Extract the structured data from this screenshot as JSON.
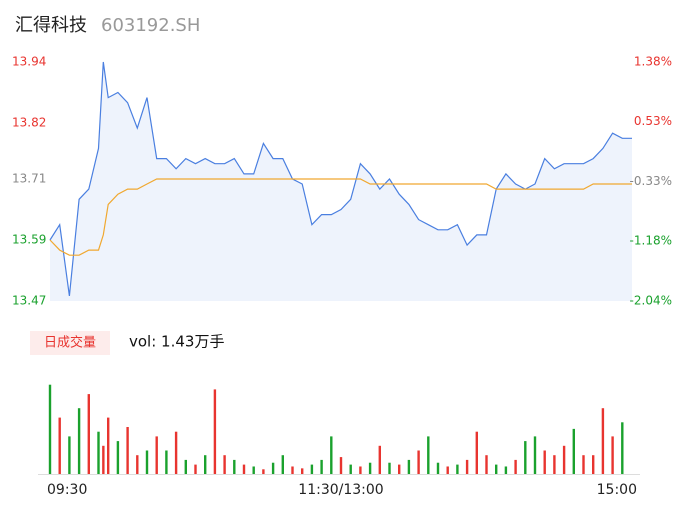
{
  "chart_data": [
    {
      "type": "line",
      "title": "汇得科技",
      "subtitle": "603192.SH",
      "x": [
        0,
        4,
        8,
        12,
        16,
        20,
        22,
        24,
        28,
        32,
        36,
        40,
        44,
        48,
        52,
        56,
        60,
        64,
        68,
        72,
        76,
        80,
        84,
        88,
        92,
        96,
        100,
        104,
        108,
        112,
        116,
        120,
        124,
        128,
        132,
        136,
        140,
        144,
        148,
        152,
        156,
        160,
        164,
        168,
        172,
        176,
        180,
        184,
        188,
        192,
        196,
        200,
        204,
        208,
        212,
        216,
        220,
        224,
        228,
        232,
        236,
        240
      ],
      "xlim": [
        0,
        240
      ],
      "xticks": [
        {
          "value": 0,
          "label": "09:30"
        },
        {
          "value": 120,
          "label": "11:30/13:00"
        },
        {
          "value": 240,
          "label": "15:00"
        }
      ],
      "series": [
        {
          "name": "price",
          "color": "#4a7fe0",
          "values": [
            13.59,
            13.62,
            13.48,
            13.67,
            13.69,
            13.77,
            13.94,
            13.87,
            13.88,
            13.86,
            13.81,
            13.87,
            13.75,
            13.75,
            13.73,
            13.75,
            13.74,
            13.75,
            13.74,
            13.74,
            13.75,
            13.72,
            13.72,
            13.78,
            13.75,
            13.75,
            13.71,
            13.7,
            13.62,
            13.64,
            13.64,
            13.65,
            13.67,
            13.74,
            13.72,
            13.69,
            13.71,
            13.68,
            13.66,
            13.63,
            13.62,
            13.61,
            13.61,
            13.62,
            13.58,
            13.6,
            13.6,
            13.69,
            13.72,
            13.7,
            13.69,
            13.7,
            13.75,
            13.73,
            13.74,
            13.74,
            13.74,
            13.75,
            13.77,
            13.8,
            13.79,
            13.79
          ]
        },
        {
          "name": "average",
          "color": "#f0a830",
          "values": [
            13.59,
            13.57,
            13.56,
            13.56,
            13.57,
            13.57,
            13.6,
            13.66,
            13.68,
            13.69,
            13.69,
            13.7,
            13.71,
            13.71,
            13.71,
            13.71,
            13.71,
            13.71,
            13.71,
            13.71,
            13.71,
            13.71,
            13.71,
            13.71,
            13.71,
            13.71,
            13.71,
            13.71,
            13.71,
            13.71,
            13.71,
            13.71,
            13.71,
            13.71,
            13.7,
            13.7,
            13.7,
            13.7,
            13.7,
            13.7,
            13.7,
            13.7,
            13.7,
            13.7,
            13.7,
            13.7,
            13.7,
            13.69,
            13.69,
            13.69,
            13.69,
            13.69,
            13.69,
            13.69,
            13.69,
            13.69,
            13.69,
            13.7,
            13.7,
            13.7,
            13.7,
            13.7
          ]
        }
      ],
      "ylim": [
        13.47,
        13.94
      ],
      "yticks": [
        13.94,
        13.82,
        13.71,
        13.59,
        13.47
      ],
      "tick_colors": [
        "#e8342f",
        "#e8342f",
        "#888888",
        "#1aa12d",
        "#1aa12d"
      ],
      "y2lim": [
        -2.04,
        1.38
      ],
      "y2ticks": [
        {
          "value": 1.38,
          "label": "1.38%"
        },
        {
          "value": 0.53,
          "label": "0.53%"
        },
        {
          "value": -0.33,
          "label": "-0.33%"
        },
        {
          "value": -1.18,
          "label": "-1.18%"
        },
        {
          "value": -2.04,
          "label": "-2.04%"
        }
      ],
      "fill": "#eef3fc"
    },
    {
      "type": "bar",
      "title": "日成交量",
      "annotation": "vol: 1.43万手",
      "ylim": [
        0,
        100
      ],
      "values": [
        95,
        60,
        40,
        70,
        85,
        45,
        30,
        60,
        35,
        50,
        20,
        25,
        40,
        25,
        45,
        15,
        10,
        20,
        90,
        20,
        15,
        10,
        8,
        5,
        12,
        20,
        8,
        6,
        10,
        15,
        40,
        18,
        10,
        8,
        12,
        30,
        12,
        10,
        15,
        25,
        40,
        12,
        8,
        10,
        15,
        45,
        20,
        10,
        8,
        15,
        35,
        40,
        25,
        20,
        30,
        48,
        20,
        20,
        70,
        40,
        55
      ],
      "colors": [
        "#1aa12d",
        "#e8342f",
        "#1aa12d",
        "#1aa12d",
        "#e8342f",
        "#1aa12d",
        "#e8342f",
        "#e8342f",
        "#1aa12d",
        "#e8342f",
        "#e8342f",
        "#1aa12d",
        "#e8342f",
        "#1aa12d",
        "#e8342f",
        "#1aa12d",
        "#e8342f",
        "#1aa12d",
        "#e8342f",
        "#e8342f",
        "#1aa12d",
        "#e8342f",
        "#1aa12d",
        "#e8342f",
        "#1aa12d",
        "#1aa12d",
        "#e8342f",
        "#e8342f",
        "#1aa12d",
        "#1aa12d",
        "#1aa12d",
        "#e8342f",
        "#1aa12d",
        "#e8342f",
        "#1aa12d",
        "#e8342f",
        "#1aa12d",
        "#e8342f",
        "#1aa12d",
        "#e8342f",
        "#1aa12d",
        "#1aa12d",
        "#e8342f",
        "#1aa12d",
        "#e8342f",
        "#e8342f",
        "#e8342f",
        "#1aa12d",
        "#1aa12d",
        "#e8342f",
        "#1aa12d",
        "#1aa12d",
        "#e8342f",
        "#e8342f",
        "#e8342f",
        "#1aa12d",
        "#e8342f",
        "#e8342f",
        "#e8342f",
        "#e8342f",
        "#1aa12d"
      ]
    }
  ]
}
